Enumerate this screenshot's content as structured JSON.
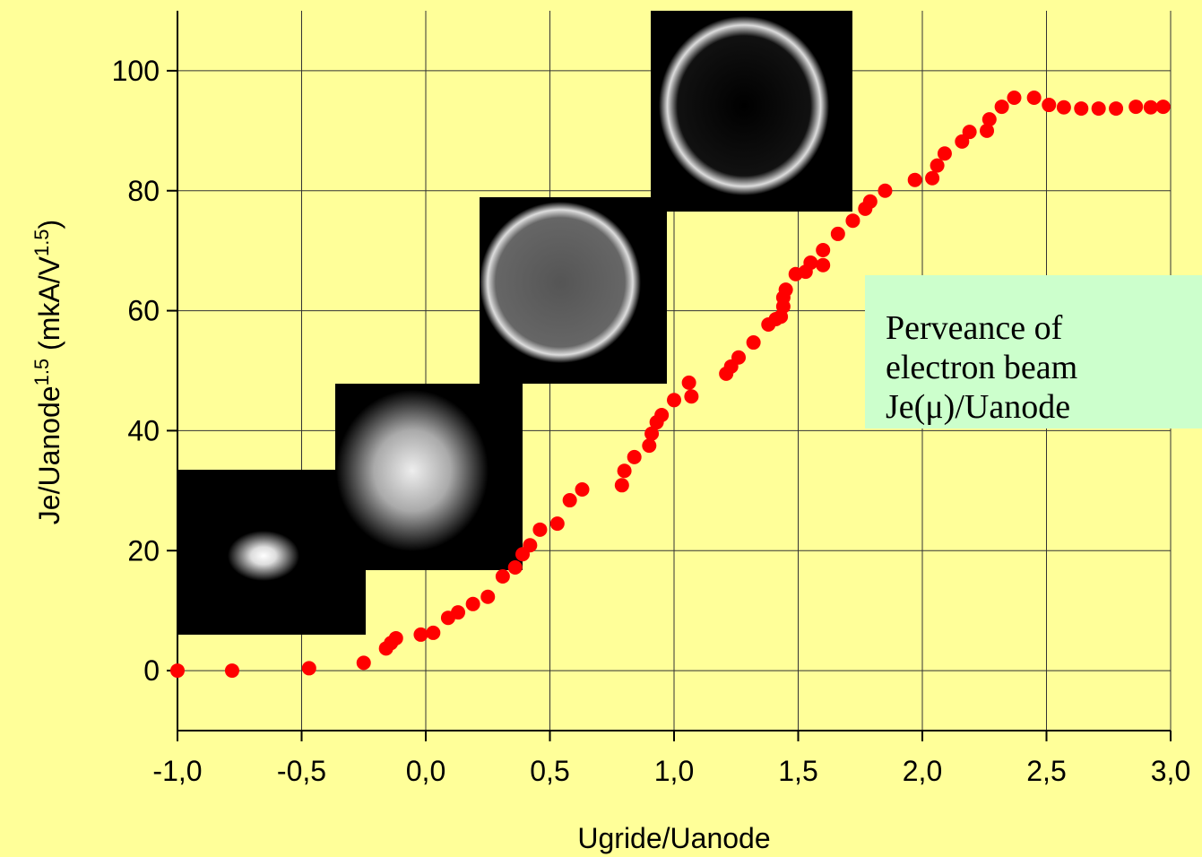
{
  "chart_data": {
    "type": "scatter",
    "xlabel": "Ugride/Uanode",
    "ylabel_parts": [
      {
        "text": "Je/Uanode"
      },
      {
        "text": "1.5",
        "sup": true
      },
      {
        "text": " (mkA/V"
      },
      {
        "text": "1.5",
        "sup": true
      },
      {
        "text": ")"
      }
    ],
    "annotation": [
      "Perveance of",
      "electron beam",
      "Je(μ)/Uanode"
    ],
    "color": "#ff0000",
    "xlim": [
      -1,
      3
    ],
    "ylim": [
      -10,
      110
    ],
    "xticks": [
      {
        "value": -1,
        "label": "-1,0"
      },
      {
        "value": -0.5,
        "label": "-0,5"
      },
      {
        "value": 0,
        "label": "0,0"
      },
      {
        "value": 0.5,
        "label": "0,5"
      },
      {
        "value": 1,
        "label": "1,0"
      },
      {
        "value": 1.5,
        "label": "1,5"
      },
      {
        "value": 2,
        "label": "2,0"
      },
      {
        "value": 2.5,
        "label": "2,5"
      },
      {
        "value": 3,
        "label": "3,0"
      }
    ],
    "yticks": [
      0,
      20,
      40,
      60,
      80,
      100
    ],
    "grid": true,
    "x": [
      -1.0,
      -0.78,
      -0.47,
      -0.25,
      -0.16,
      -0.14,
      -0.12,
      -0.02,
      0.03,
      0.09,
      0.13,
      0.19,
      0.25,
      0.31,
      0.36,
      0.39,
      0.42,
      0.46,
      0.53,
      0.58,
      0.63,
      0.79,
      0.8,
      0.84,
      0.9,
      0.91,
      0.93,
      0.95,
      1.0,
      1.07,
      1.06,
      1.21,
      1.23,
      1.26,
      1.32,
      1.38,
      1.41,
      1.43,
      1.44,
      1.44,
      1.45,
      1.49,
      1.53,
      1.55,
      1.6,
      1.6,
      1.66,
      1.72,
      1.77,
      1.79,
      1.85,
      1.97,
      2.04,
      2.06,
      2.09,
      2.16,
      2.19,
      2.26,
      2.27,
      2.32,
      2.37,
      2.45,
      2.51,
      2.57,
      2.64,
      2.71,
      2.78,
      2.86,
      2.92,
      2.97
    ],
    "values": [
      0,
      0,
      0.4,
      1.3,
      3.7,
      4.6,
      5.4,
      6.0,
      6.3,
      8.8,
      9.7,
      11.1,
      12.3,
      15.7,
      17.2,
      19.4,
      20.9,
      23.5,
      24.5,
      28.4,
      30.2,
      30.9,
      33.3,
      35.6,
      37.5,
      39.5,
      41.4,
      42.6,
      45.1,
      45.7,
      48.0,
      49.5,
      50.7,
      52.2,
      54.7,
      57.7,
      58.6,
      59.0,
      60.7,
      62.2,
      63.5,
      66.1,
      66.5,
      68.0,
      67.6,
      70.1,
      72.8,
      75.0,
      77.0,
      78.2,
      80.0,
      81.8,
      82.1,
      84.2,
      86.2,
      88.2,
      89.8,
      90.0,
      91.9,
      94.0,
      95.5,
      95.5,
      94.3,
      93.9,
      93.7,
      93.7,
      93.7,
      94.0,
      93.9,
      94.0
    ]
  }
}
